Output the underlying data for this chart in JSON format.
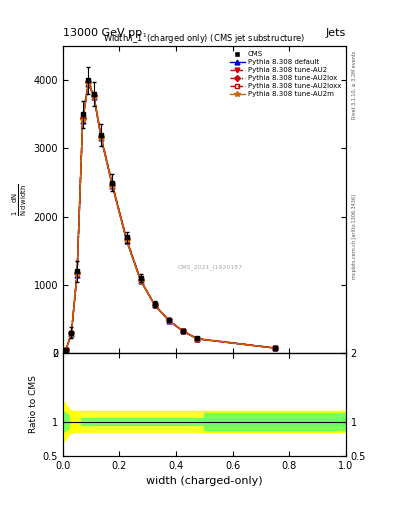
{
  "title_top": "13000 GeV pp",
  "title_right": "Jets",
  "plot_title": "Width $\\lambda$_1$^1$ (charged only) (CMS jet substructure)",
  "xlabel": "width (charged-only)",
  "ylabel_ratio": "Ratio to CMS",
  "right_label_top": "Rivet 3.1.10, ≥ 3.2M events",
  "right_label_bottom": "mcplots.cern.ch [arXiv:1306.3436]",
  "ref_id": "CMS_2021_I1920187",
  "x_bins": [
    0.0,
    0.02,
    0.04,
    0.06,
    0.08,
    0.1,
    0.12,
    0.15,
    0.2,
    0.25,
    0.3,
    0.35,
    0.4,
    0.45,
    0.5,
    1.0
  ],
  "cms_y": [
    50,
    300,
    1200,
    3500,
    4000,
    3800,
    3200,
    2500,
    1700,
    1100,
    720,
    490,
    330,
    220,
    80
  ],
  "cms_yerr": [
    20,
    80,
    150,
    200,
    200,
    180,
    160,
    120,
    80,
    60,
    40,
    30,
    25,
    20,
    15
  ],
  "py_default_y": [
    40,
    280,
    1150,
    3400,
    3950,
    3750,
    3150,
    2450,
    1650,
    1060,
    700,
    475,
    320,
    210,
    75
  ],
  "py_au2_y": [
    42,
    285,
    1160,
    3420,
    3960,
    3760,
    3160,
    2460,
    1660,
    1065,
    703,
    478,
    322,
    212,
    76
  ],
  "py_au2lox_y": [
    44,
    290,
    1170,
    3440,
    3970,
    3770,
    3170,
    2470,
    1670,
    1070,
    706,
    481,
    324,
    214,
    77
  ],
  "py_au2loxx_y": [
    46,
    295,
    1180,
    3460,
    3980,
    3780,
    3180,
    2480,
    1680,
    1075,
    709,
    484,
    326,
    216,
    78
  ],
  "py_au2m_y": [
    43,
    287,
    1155,
    3410,
    3955,
    3755,
    3155,
    2455,
    1655,
    1062,
    701,
    476,
    321,
    211,
    75
  ],
  "colors": {
    "cms": "#000000",
    "py_default": "#0000cc",
    "py_au2": "#cc0000",
    "py_au2lox": "#cc0000",
    "py_au2loxx": "#cc0000",
    "py_au2m": "#cc6600"
  },
  "linestyles": {
    "py_default": "-",
    "py_au2": "--",
    "py_au2lox": "-.",
    "py_au2loxx": "--",
    "py_au2m": "-"
  },
  "markers": {
    "py_default": "^",
    "py_au2": "v",
    "py_au2lox": "D",
    "py_au2loxx": "s",
    "py_au2m": "*"
  },
  "ylim_main": [
    0,
    4500
  ],
  "yticks_main": [
    0,
    1000,
    2000,
    3000,
    4000
  ],
  "ylim_ratio": [
    0.5,
    2.0
  ],
  "ratio_yticks": [
    0.5,
    1.0,
    2.0
  ],
  "background_color": "#ffffff"
}
